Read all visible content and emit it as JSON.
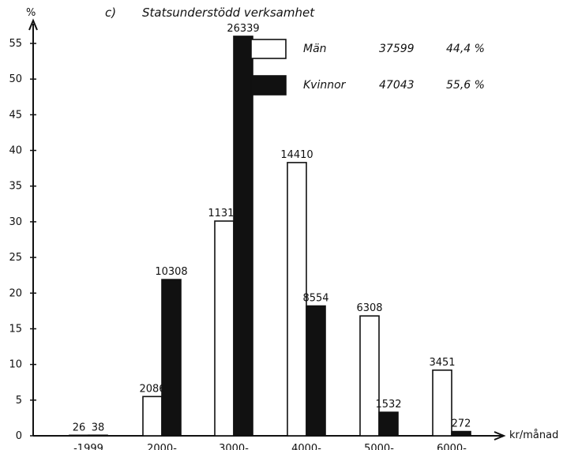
{
  "chart_data": {
    "type": "bar",
    "panel_label": "c)",
    "title": "Statsunderstödd verksamhet",
    "ylabel": "%",
    "xlabel": "kr/månad",
    "ylim": [
      0,
      55
    ],
    "yticks": [
      0,
      5,
      10,
      15,
      20,
      25,
      30,
      35,
      40,
      45,
      50,
      55
    ],
    "categories": [
      "-1999",
      "2000-",
      "3000-",
      "4000-",
      "5000-",
      "6000-"
    ],
    "series": [
      {
        "name": "Män",
        "fill": "#ffffff",
        "total": "37599",
        "share": "44,4 %",
        "values": [
          0.07,
          5.5,
          30.1,
          38.3,
          16.8,
          9.2
        ],
        "labels": [
          "26",
          "2086",
          "11318",
          "14410",
          "6308",
          "3451"
        ]
      },
      {
        "name": "Kvinnor",
        "fill": "#111111",
        "total": "47043",
        "share": "55,6 %",
        "values": [
          0.08,
          21.9,
          56.0,
          18.2,
          3.3,
          0.6
        ],
        "labels": [
          "38",
          "10308",
          "26339",
          "8554",
          "1532",
          "272"
        ]
      }
    ],
    "value_scale_note": "",
    "legend_position": "top-right",
    "grid": false
  }
}
